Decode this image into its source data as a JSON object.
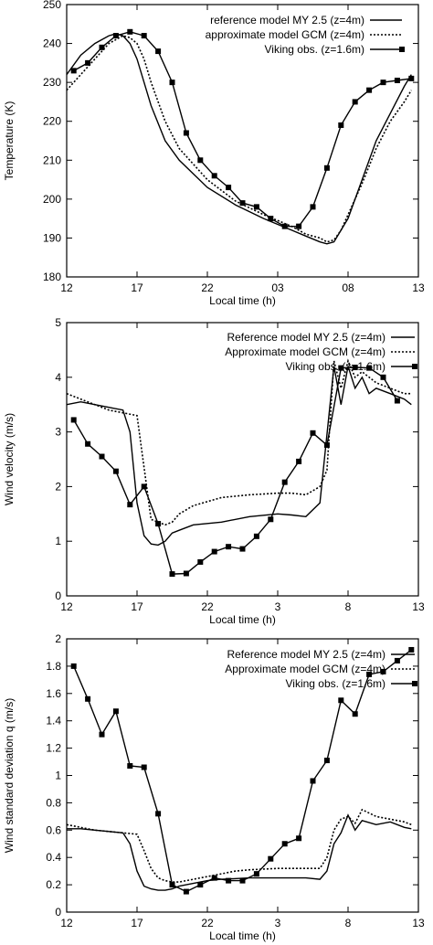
{
  "chart_data": [
    {
      "type": "line",
      "xlabel": "Local time (h)",
      "ylabel": "Temperature (K)",
      "ylim": [
        180,
        250
      ],
      "xlim": [
        0,
        25
      ],
      "xticks": [
        0,
        5,
        10,
        15,
        20,
        25
      ],
      "xticklabels": [
        "12",
        "17",
        "22",
        "03",
        "08",
        "13"
      ],
      "yticks": [
        180,
        190,
        200,
        210,
        220,
        230,
        240,
        250
      ],
      "yticklabels": [
        "180",
        "190",
        "200",
        "210",
        "220",
        "230",
        "240",
        "250"
      ],
      "grid": false,
      "legend_position": "top-right",
      "series": [
        {
          "name": "reference model MY 2.5 (z=4m)",
          "style": "solid",
          "x": [
            0,
            1,
            2,
            3,
            3.5,
            4,
            4.5,
            5,
            5.5,
            6,
            7,
            8,
            10,
            12,
            14,
            16,
            17,
            18,
            18.5,
            19,
            20,
            21,
            22,
            23,
            24,
            24.5
          ],
          "y": [
            232,
            237,
            240,
            242,
            242.5,
            242,
            240,
            236,
            230,
            224,
            215,
            210,
            203,
            198.5,
            195,
            192,
            190.5,
            189,
            188.5,
            189,
            195,
            205,
            215,
            222,
            229,
            232
          ]
        },
        {
          "name": "approximate model GCM (z=4m)",
          "style": "dotted",
          "x": [
            0,
            1,
            2,
            3,
            4,
            4.5,
            5,
            5.5,
            6,
            6.5,
            7,
            8,
            10,
            12,
            14,
            16,
            17,
            18,
            18.5,
            19,
            19.5,
            20,
            21,
            22,
            23,
            24,
            24.5
          ],
          "y": [
            228,
            232,
            236,
            240,
            242,
            241.5,
            240,
            236,
            230,
            225,
            220,
            213,
            205,
            199.5,
            196,
            193,
            191,
            190,
            189,
            189.5,
            192,
            196,
            204,
            213,
            220,
            225,
            228
          ]
        },
        {
          "name": "Viking obs. (z=1.6m)",
          "style": "solid-square",
          "x": [
            0.5,
            1.5,
            2.5,
            3.5,
            4.5,
            5.5,
            6.5,
            7.5,
            8.5,
            9.5,
            10.5,
            11.5,
            12.5,
            13.5,
            14.5,
            15.5,
            16.5,
            17.5,
            18.5,
            19.5,
            20.5,
            21.5,
            22.5,
            23.5,
            24.5
          ],
          "y": [
            233,
            235,
            239,
            242,
            243,
            242,
            238,
            230,
            217,
            210,
            206,
            203,
            199,
            198,
            195,
            193,
            193,
            198,
            208,
            219,
            225,
            228,
            230,
            230.5,
            231
          ]
        }
      ]
    },
    {
      "type": "line",
      "xlabel": "Local time (h)",
      "ylabel": "Wind velocity (m/s)",
      "ylim": [
        0,
        5
      ],
      "xlim": [
        0,
        25
      ],
      "xticks": [
        0,
        5,
        10,
        15,
        20,
        25
      ],
      "xticklabels": [
        "12",
        "17",
        "22",
        "3",
        "8",
        "13"
      ],
      "yticks": [
        0,
        1,
        2,
        3,
        4,
        5
      ],
      "yticklabels": [
        "0",
        "1",
        "2",
        "3",
        "4",
        "5"
      ],
      "grid": false,
      "legend_position": "top-right",
      "series": [
        {
          "name": "Reference model MY 2.5 (z=4m)",
          "style": "solid",
          "x": [
            0,
            1,
            3,
            4,
            4.5,
            5,
            5.5,
            6,
            6.5,
            7,
            7.5,
            8,
            9,
            11,
            13,
            15,
            16,
            17,
            18,
            19,
            19.5,
            20,
            20.5,
            21,
            21.5,
            22,
            23,
            24,
            24.5
          ],
          "y": [
            3.5,
            3.55,
            3.45,
            3.4,
            3.0,
            1.7,
            1.1,
            0.95,
            0.93,
            1.0,
            1.15,
            1.2,
            1.3,
            1.35,
            1.45,
            1.5,
            1.48,
            1.45,
            1.7,
            4.2,
            3.5,
            4.2,
            3.8,
            4.0,
            3.7,
            3.8,
            3.7,
            3.6,
            3.5
          ]
        },
        {
          "name": "Approximate model GCM (z=4m)",
          "style": "dotted",
          "x": [
            0,
            1,
            2,
            3,
            4,
            5,
            6,
            6.5,
            7,
            7.5,
            8,
            9,
            11,
            13,
            15,
            16,
            17,
            18,
            18.5,
            19,
            19.5,
            20,
            20.5,
            21,
            21.5,
            22,
            23,
            24,
            24.5
          ],
          "y": [
            3.7,
            3.6,
            3.5,
            3.4,
            3.35,
            3.3,
            1.4,
            1.35,
            1.3,
            1.35,
            1.5,
            1.65,
            1.8,
            1.85,
            1.88,
            1.88,
            1.85,
            2.0,
            2.3,
            4.3,
            3.8,
            4.3,
            4.0,
            4.1,
            4.0,
            3.9,
            3.8,
            3.7,
            3.7
          ]
        },
        {
          "name": "Viking obs. (z=1.6m)",
          "style": "solid-square",
          "x": [
            0.5,
            1.5,
            2.5,
            3.5,
            4.5,
            5.5,
            6.5,
            7.5,
            8.5,
            9.5,
            10.5,
            11.5,
            12.5,
            13.5,
            14.5,
            15.5,
            16.5,
            17.5,
            18.5,
            19.5,
            20.5,
            21.5,
            22.5,
            23.5
          ],
          "y": [
            3.22,
            2.78,
            2.55,
            2.28,
            1.67,
            2.0,
            1.32,
            0.4,
            0.41,
            0.62,
            0.81,
            0.9,
            0.86,
            1.09,
            1.4,
            2.08,
            2.46,
            2.98,
            2.76,
            4.17,
            4.18,
            4.17,
            4.0,
            3.57
          ]
        }
      ]
    },
    {
      "type": "line",
      "xlabel": "Local time (h)",
      "ylabel": "Wind standard deviation q (m/s)",
      "ylim": [
        0,
        2
      ],
      "xlim": [
        0,
        25
      ],
      "xticks": [
        0,
        5,
        10,
        15,
        20,
        25
      ],
      "xticklabels": [
        "12",
        "17",
        "22",
        "3",
        "8",
        "13"
      ],
      "yticks": [
        0,
        0.2,
        0.4,
        0.6,
        0.8,
        1.0,
        1.2,
        1.4,
        1.6,
        1.8,
        2.0
      ],
      "yticklabels": [
        "0",
        "0.2",
        "0.4",
        "0.6",
        "0.8",
        "1",
        "1.2",
        "1.4",
        "1.6",
        "1.8",
        "2"
      ],
      "grid": false,
      "legend_position": "top-right",
      "series": [
        {
          "name": "Reference model MY 2.5 (z=4m)",
          "style": "solid",
          "x": [
            0,
            1,
            2,
            3,
            4,
            4.5,
            5,
            5.5,
            6,
            6.5,
            7,
            7.5,
            8,
            9,
            10,
            11,
            13,
            15,
            17,
            18,
            18.5,
            19,
            19.5,
            20,
            20.5,
            21,
            22,
            23,
            24,
            24.5
          ],
          "y": [
            0.61,
            0.61,
            0.6,
            0.59,
            0.58,
            0.5,
            0.3,
            0.19,
            0.17,
            0.16,
            0.16,
            0.17,
            0.19,
            0.21,
            0.23,
            0.24,
            0.25,
            0.25,
            0.25,
            0.24,
            0.3,
            0.5,
            0.58,
            0.71,
            0.6,
            0.67,
            0.64,
            0.66,
            0.62,
            0.61
          ]
        },
        {
          "name": "Approximate model GCM (z=4m)",
          "style": "dotted",
          "x": [
            0,
            1,
            2,
            3,
            4,
            5,
            5.5,
            6,
            6.5,
            7,
            7.5,
            8,
            9,
            10,
            11,
            12,
            13,
            15,
            17,
            18,
            18.5,
            19,
            19.5,
            20,
            20.5,
            21,
            22,
            23,
            24,
            24.5
          ],
          "y": [
            0.64,
            0.62,
            0.6,
            0.59,
            0.58,
            0.57,
            0.45,
            0.32,
            0.25,
            0.23,
            0.22,
            0.22,
            0.24,
            0.26,
            0.28,
            0.3,
            0.31,
            0.32,
            0.32,
            0.32,
            0.4,
            0.6,
            0.68,
            0.7,
            0.65,
            0.75,
            0.7,
            0.68,
            0.66,
            0.64
          ]
        },
        {
          "name": "Viking obs. (z=1.6m)",
          "style": "solid-square",
          "x": [
            0.5,
            1.5,
            2.5,
            3.5,
            4.5,
            5.5,
            6.5,
            7.5,
            8.5,
            9.5,
            10.5,
            11.5,
            12.5,
            13.5,
            14.5,
            15.5,
            16.5,
            17.5,
            18.5,
            19.5,
            20.5,
            21.5,
            22.5,
            23.5,
            24.5
          ],
          "y": [
            1.8,
            1.56,
            1.3,
            1.47,
            1.07,
            1.06,
            0.72,
            0.2,
            0.15,
            0.2,
            0.25,
            0.23,
            0.23,
            0.28,
            0.39,
            0.5,
            0.54,
            0.96,
            1.11,
            1.55,
            1.45,
            1.74,
            1.76,
            1.84,
            1.92
          ]
        }
      ]
    }
  ]
}
